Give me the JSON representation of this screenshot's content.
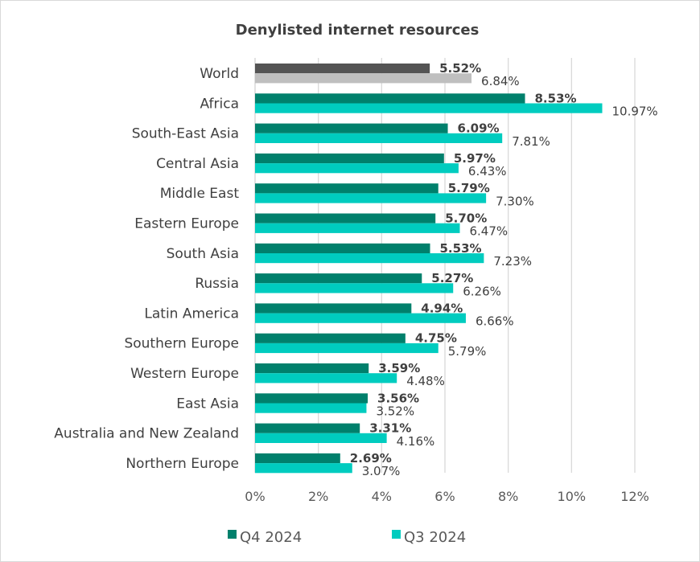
{
  "chart_data": {
    "type": "bar",
    "orientation": "horizontal",
    "title": "Denylisted internet resources",
    "categories": [
      "World",
      "Africa",
      "South-East Asia",
      "Central Asia",
      "Middle East",
      "Eastern Europe",
      "South Asia",
      "Russia",
      "Latin America",
      "Southern Europe",
      "Western Europe",
      "East Asia",
      "Australia and New Zealand",
      "Northern Europe"
    ],
    "series": [
      {
        "name": "Q4 2024",
        "color": "#00806c",
        "highlight_color": "#545454",
        "values": [
          5.52,
          8.53,
          6.09,
          5.97,
          5.79,
          5.7,
          5.53,
          5.27,
          4.94,
          4.75,
          3.59,
          3.56,
          3.31,
          2.69
        ],
        "labels": [
          "5.52%",
          "8.53%",
          "6.09%",
          "5.97%",
          "5.79%",
          "5.70%",
          "5.53%",
          "5.27%",
          "4.94%",
          "4.75%",
          "3.59%",
          "3.56%",
          "3.31%",
          "2.69%"
        ]
      },
      {
        "name": "Q3 2024",
        "color": "#00ccbf",
        "highlight_color": "#bfbfbf",
        "values": [
          6.84,
          10.97,
          7.81,
          6.43,
          7.3,
          6.47,
          7.23,
          6.26,
          6.66,
          5.79,
          4.48,
          3.52,
          4.16,
          3.07
        ],
        "labels": [
          "6.84%",
          "10.97%",
          "7.81%",
          "6.43%",
          "7.30%",
          "6.47%",
          "7.23%",
          "6.26%",
          "6.66%",
          "5.79%",
          "4.48%",
          "3.52%",
          "4.16%",
          "3.07%"
        ]
      }
    ],
    "xlim": [
      0,
      12
    ],
    "xticks": [
      0,
      2,
      4,
      6,
      8,
      10,
      12
    ],
    "xtick_labels": [
      "0%",
      "2%",
      "4%",
      "6%",
      "8%",
      "10%",
      "12%"
    ],
    "grid": true,
    "legend": "bottom",
    "legend_labels": [
      "Q4 2024",
      "Q3 2024"
    ],
    "xlabel": "",
    "ylabel": ""
  }
}
